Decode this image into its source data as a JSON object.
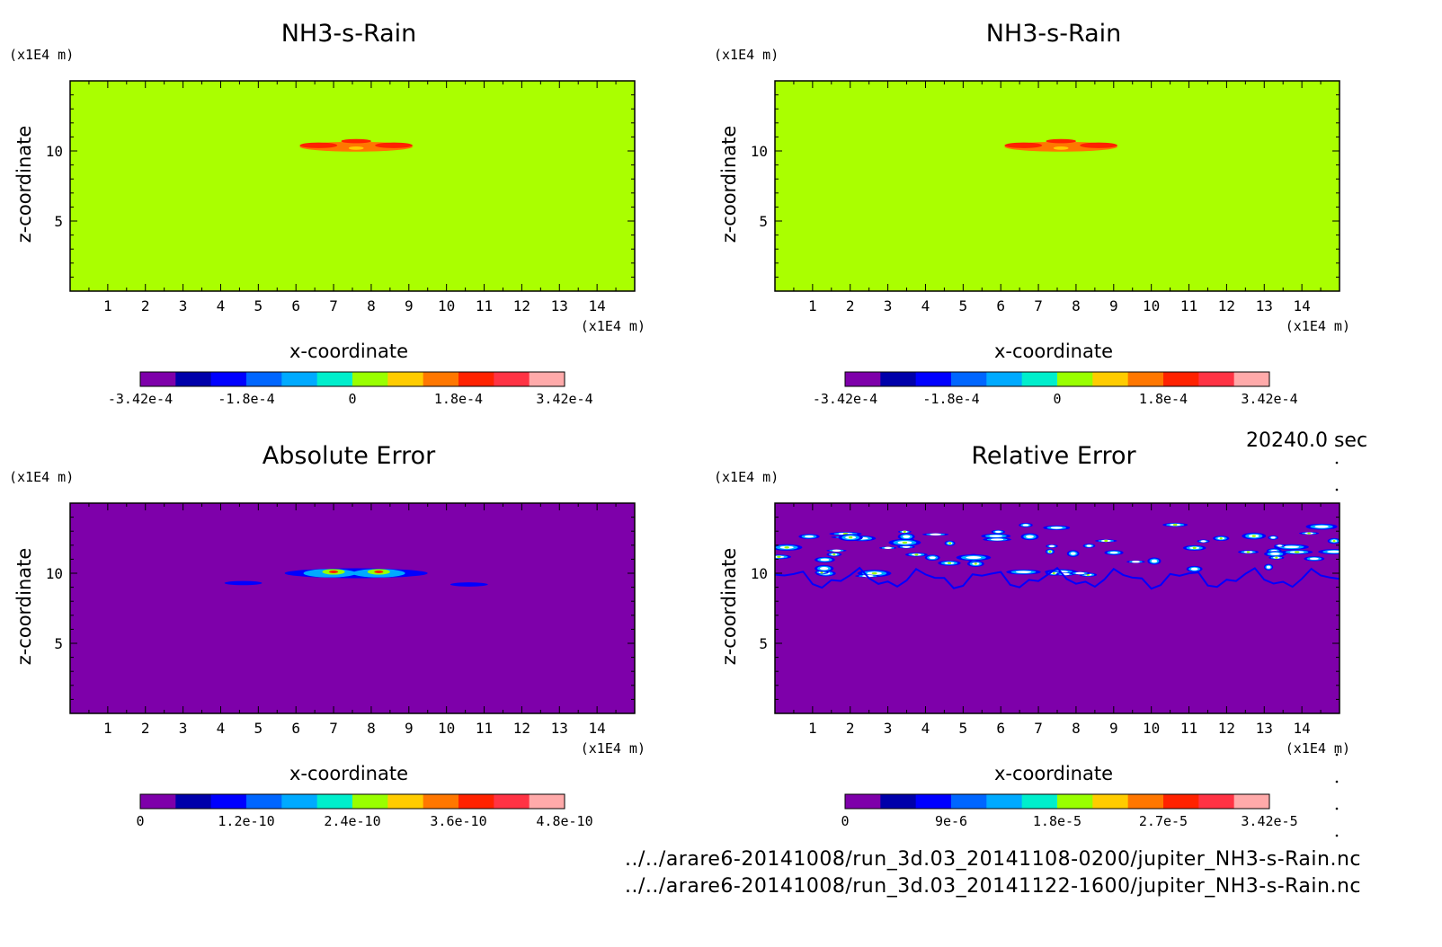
{
  "time_label": "20240.0 sec",
  "footer": {
    "line1": "../../arare6-20141008/run_3d.03_20141108-0200/jupiter_NH3-s-Rain.nc",
    "line2": "../../arare6-20141008/run_3d.03_20141122-1600/jupiter_NH3-s-Rain.nc"
  },
  "colors": {
    "background_field": "#aaff00",
    "error_background": "#7e00aa",
    "colormap": [
      "#7e00aa",
      "#0000aa",
      "#0000ff",
      "#0066ff",
      "#00aaff",
      "#00eecc",
      "#99ff00",
      "#ffcc00",
      "#ff7700",
      "#ff2200",
      "#ff3344",
      "#ffaaaa"
    ]
  },
  "chart_data": [
    {
      "id": "panel-tl",
      "type": "heatmap",
      "title": "NH3-s-Rain",
      "xlabel": "x-coordinate",
      "ylabel": "z-coordinate",
      "x_unit": "(x1E4 m)",
      "y_unit": "(x1E4 m)",
      "xlim": [
        0,
        15
      ],
      "ylim": [
        0,
        15
      ],
      "xticks": [
        "1",
        "2",
        "3",
        "4",
        "5",
        "6",
        "7",
        "8",
        "9",
        "10",
        "11",
        "12",
        "13",
        "14"
      ],
      "yticks": [
        "5",
        "10"
      ],
      "background": "#aaff00",
      "blobs": [
        {
          "x": 7.6,
          "z": 10.3,
          "rx": 1.5,
          "rz": 0.35,
          "color": "#ff7700"
        },
        {
          "x": 6.6,
          "z": 10.4,
          "rx": 0.5,
          "rz": 0.2,
          "color": "#ff2200"
        },
        {
          "x": 8.6,
          "z": 10.4,
          "rx": 0.5,
          "rz": 0.2,
          "color": "#ff2200"
        },
        {
          "x": 7.6,
          "z": 10.7,
          "rx": 0.4,
          "rz": 0.15,
          "color": "#ff2200"
        },
        {
          "x": 7.6,
          "z": 10.2,
          "rx": 0.2,
          "rz": 0.12,
          "color": "#ffcc00"
        }
      ],
      "colorbar": {
        "labels": [
          "-3.42e-4",
          "-1.8e-4",
          "0",
          "1.8e-4",
          "3.42e-4"
        ],
        "min": -0.000342,
        "max": 0.000342
      }
    },
    {
      "id": "panel-tr",
      "type": "heatmap",
      "title": "NH3-s-Rain",
      "xlabel": "x-coordinate",
      "ylabel": "z-coordinate",
      "x_unit": "(x1E4 m)",
      "y_unit": "(x1E4 m)",
      "xlim": [
        0,
        15
      ],
      "ylim": [
        0,
        15
      ],
      "xticks": [
        "1",
        "2",
        "3",
        "4",
        "5",
        "6",
        "7",
        "8",
        "9",
        "10",
        "11",
        "12",
        "13",
        "14"
      ],
      "yticks": [
        "5",
        "10"
      ],
      "background": "#aaff00",
      "blobs": [
        {
          "x": 7.6,
          "z": 10.3,
          "rx": 1.5,
          "rz": 0.35,
          "color": "#ff7700"
        },
        {
          "x": 6.6,
          "z": 10.4,
          "rx": 0.5,
          "rz": 0.2,
          "color": "#ff2200"
        },
        {
          "x": 8.6,
          "z": 10.4,
          "rx": 0.5,
          "rz": 0.2,
          "color": "#ff2200"
        },
        {
          "x": 7.6,
          "z": 10.7,
          "rx": 0.4,
          "rz": 0.15,
          "color": "#ff2200"
        },
        {
          "x": 7.6,
          "z": 10.2,
          "rx": 0.2,
          "rz": 0.12,
          "color": "#ffcc00"
        }
      ],
      "colorbar": {
        "labels": [
          "-3.42e-4",
          "-1.8e-4",
          "0",
          "1.8e-4",
          "3.42e-4"
        ],
        "min": -0.000342,
        "max": 0.000342
      }
    },
    {
      "id": "panel-bl",
      "type": "heatmap",
      "title": "Absolute Error",
      "xlabel": "x-coordinate",
      "ylabel": "z-coordinate",
      "x_unit": "(x1E4 m)",
      "y_unit": "(x1E4 m)",
      "xlim": [
        0,
        15
      ],
      "ylim": [
        0,
        15
      ],
      "xticks": [
        "1",
        "2",
        "3",
        "4",
        "5",
        "6",
        "7",
        "8",
        "9",
        "10",
        "11",
        "12",
        "13",
        "14"
      ],
      "yticks": [
        "5",
        "10"
      ],
      "background": "#7e00aa",
      "blobs": [
        {
          "x": 7.6,
          "z": 10.0,
          "rx": 1.9,
          "rz": 0.35,
          "color": "#0000ff"
        },
        {
          "x": 6.9,
          "z": 10.0,
          "rx": 0.7,
          "rz": 0.3,
          "color": "#00aaff"
        },
        {
          "x": 8.2,
          "z": 10.0,
          "rx": 0.7,
          "rz": 0.3,
          "color": "#00aaff"
        },
        {
          "x": 7.0,
          "z": 10.1,
          "rx": 0.3,
          "rz": 0.2,
          "color": "#99ff00"
        },
        {
          "x": 8.2,
          "z": 10.1,
          "rx": 0.3,
          "rz": 0.2,
          "color": "#99ff00"
        },
        {
          "x": 7.0,
          "z": 10.1,
          "rx": 0.12,
          "rz": 0.1,
          "color": "#ff2200"
        },
        {
          "x": 8.2,
          "z": 10.1,
          "rx": 0.12,
          "rz": 0.1,
          "color": "#ff2200"
        },
        {
          "x": 4.6,
          "z": 9.3,
          "rx": 0.5,
          "rz": 0.15,
          "color": "#0000ff"
        },
        {
          "x": 10.6,
          "z": 9.2,
          "rx": 0.5,
          "rz": 0.15,
          "color": "#0000ff"
        }
      ],
      "colorbar": {
        "labels": [
          "0",
          "1.2e-10",
          "2.4e-10",
          "3.6e-10",
          "4.8e-10"
        ],
        "min": 0,
        "max": 4.8e-10
      }
    },
    {
      "id": "panel-br",
      "type": "heatmap",
      "title": "Relative Error",
      "xlabel": "x-coordinate",
      "ylabel": "z-coordinate",
      "x_unit": "(x1E4 m)",
      "y_unit": "(x1E4 m)",
      "xlim": [
        0,
        15
      ],
      "ylim": [
        0,
        15
      ],
      "xticks": [
        "1",
        "2",
        "3",
        "4",
        "5",
        "6",
        "7",
        "8",
        "9",
        "10",
        "11",
        "12",
        "13",
        "14"
      ],
      "yticks": [
        "5",
        "10"
      ],
      "background": "#7e00aa",
      "noisy_band": {
        "x_from": 0,
        "x_to": 15,
        "z_from": 9.0,
        "z_to": 14.0,
        "count": 70,
        "seed": 7
      },
      "colorbar": {
        "labels": [
          "0",
          "9e-6",
          "1.8e-5",
          "2.7e-5",
          "3.42e-5"
        ],
        "min": 0,
        "max": 3.42e-05
      }
    }
  ]
}
